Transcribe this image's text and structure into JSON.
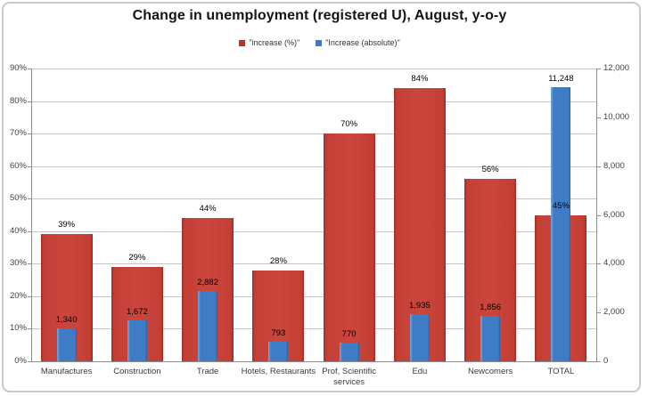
{
  "title": "Change in unemployment (registered U), August, y-o-y",
  "legend": {
    "items": [
      {
        "label": "\"increase (%)\"",
        "color": "#b5342b"
      },
      {
        "label": "\"Increase (absolute)\"",
        "color": "#3e7ac5"
      }
    ]
  },
  "chart_data": {
    "type": "bar",
    "title": "Change in unemployment (registered U), August, y-o-y",
    "categories": [
      "Manufactures",
      "Construction",
      "Trade",
      "Hotels, Restaurants",
      "Prof, Scientific\nservices",
      "Edu",
      "Newcomers",
      "TOTAL"
    ],
    "series": [
      {
        "name": "\"increase (%)\"",
        "axis": "left",
        "color": "#c23b33",
        "values": [
          39,
          29,
          44,
          28,
          70,
          84,
          56,
          45
        ],
        "labels": [
          "39%",
          "29%",
          "44%",
          "28%",
          "70%",
          "84%",
          "56%",
          "45%"
        ]
      },
      {
        "name": "\"Increase (absolute)\"",
        "axis": "right",
        "color": "#3e7ac5",
        "values": [
          1340,
          1672,
          2882,
          793,
          770,
          1935,
          1856,
          11248
        ],
        "labels": [
          "1,340",
          "1,672",
          "2,882",
          "793",
          "770",
          "1,935",
          "1,856",
          "11,248"
        ]
      }
    ],
    "left_axis": {
      "min": 0,
      "max": 90,
      "unit": "%",
      "ticks": [
        "0%",
        "10%",
        "20%",
        "30%",
        "40%",
        "50%",
        "60%",
        "70%",
        "80%",
        "90%"
      ]
    },
    "right_axis": {
      "min": 0,
      "max": 12000,
      "unit": "",
      "ticks": [
        "0",
        "2,000",
        "4,000",
        "6,000",
        "8,000",
        "10,000",
        "12,000"
      ]
    },
    "grid": true,
    "legend_position": "top"
  }
}
